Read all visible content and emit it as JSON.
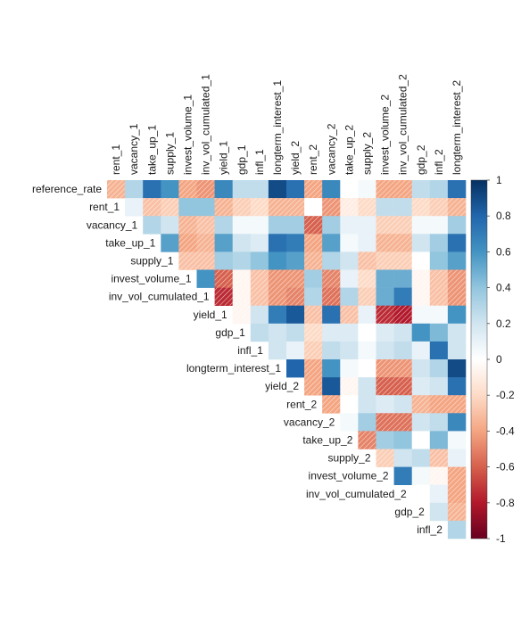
{
  "chart_data": {
    "type": "heatmap",
    "subtype": "upper-triangular correlation matrix",
    "row_labels": [
      "reference_rate",
      "rent_1",
      "vacancy_1",
      "take_up_1",
      "supply_1",
      "invest_volume_1",
      "inv_vol_cumulated_1",
      "yield_1",
      "gdp_1",
      "infl_1",
      "longterm_interest_1",
      "yield_2",
      "rent_2",
      "vacancy_2",
      "take_up_2",
      "supply_2",
      "invest_volume_2",
      "inv_vol_cumulated_2",
      "gdp_2",
      "infl_2"
    ],
    "col_labels": [
      "rent_1",
      "vacancy_1",
      "take_up_1",
      "supply_1",
      "invest_volume_1",
      "inv_vol_cumulated_1",
      "yield_1",
      "gdp_1",
      "infl_1",
      "longterm_interest_1",
      "yield_2",
      "rent_2",
      "vacancy_2",
      "take_up_2",
      "supply_2",
      "invest_volume_2",
      "inv_vol_cumulated_2",
      "gdp_2",
      "infl_2",
      "longterm_interest_2"
    ],
    "values": [
      [
        -0.35,
        0.3,
        0.75,
        0.6,
        -0.4,
        -0.45,
        0.65,
        0.25,
        0.25,
        0.9,
        0.75,
        -0.4,
        0.65,
        0.0,
        0.05,
        -0.4,
        -0.4,
        0.25,
        0.3,
        0.75
      ],
      [
        null,
        0.1,
        -0.3,
        -0.25,
        0.4,
        0.4,
        -0.35,
        -0.25,
        -0.2,
        -0.35,
        -0.35,
        0.0,
        -0.45,
        -0.1,
        -0.2,
        0.25,
        0.25,
        -0.2,
        -0.25,
        -0.35
      ],
      [
        null,
        null,
        0.3,
        0.2,
        -0.35,
        -0.3,
        0.3,
        0.05,
        0.05,
        0.35,
        0.35,
        -0.6,
        0.35,
        0.1,
        0.1,
        -0.25,
        -0.25,
        0.05,
        0.05,
        0.35
      ],
      [
        null,
        null,
        null,
        0.55,
        -0.4,
        -0.35,
        0.55,
        0.2,
        0.15,
        0.75,
        0.7,
        -0.4,
        0.55,
        0.05,
        0.1,
        -0.35,
        -0.35,
        0.2,
        0.35,
        0.75
      ],
      [
        null,
        null,
        null,
        null,
        -0.3,
        -0.3,
        0.35,
        0.3,
        0.4,
        0.6,
        0.55,
        -0.35,
        0.3,
        0.2,
        -0.3,
        -0.25,
        -0.25,
        0.0,
        0.4,
        0.55
      ],
      [
        null,
        null,
        null,
        null,
        null,
        0.6,
        -0.6,
        -0.05,
        -0.3,
        -0.45,
        -0.45,
        0.35,
        -0.5,
        0.1,
        -0.2,
        0.5,
        0.5,
        -0.05,
        -0.3,
        -0.45
      ],
      [
        null,
        null,
        null,
        null,
        null,
        null,
        -0.75,
        -0.05,
        -0.3,
        -0.45,
        -0.5,
        0.3,
        -0.55,
        0.3,
        -0.25,
        0.5,
        0.7,
        -0.05,
        -0.3,
        -0.45
      ],
      [
        null,
        null,
        null,
        null,
        null,
        null,
        null,
        -0.05,
        0.2,
        0.7,
        0.85,
        -0.3,
        0.75,
        -0.3,
        0.1,
        -0.75,
        -0.8,
        0.05,
        0.05,
        0.6
      ],
      [
        null,
        null,
        null,
        null,
        null,
        null,
        null,
        null,
        0.25,
        0.2,
        0.25,
        -0.2,
        0.15,
        0.15,
        0.0,
        0.15,
        0.2,
        0.6,
        0.45,
        0.2
      ],
      [
        null,
        null,
        null,
        null,
        null,
        null,
        null,
        null,
        null,
        0.2,
        0.1,
        -0.25,
        0.25,
        0.2,
        0.05,
        0.2,
        0.25,
        0.1,
        0.75,
        0.2
      ],
      [
        null,
        null,
        null,
        null,
        null,
        null,
        null,
        null,
        null,
        null,
        0.8,
        -0.4,
        0.6,
        0.05,
        0.0,
        -0.45,
        -0.45,
        0.2,
        0.3,
        0.9
      ],
      [
        null,
        null,
        null,
        null,
        null,
        null,
        null,
        null,
        null,
        null,
        null,
        -0.4,
        0.85,
        -0.05,
        0.2,
        -0.6,
        -0.6,
        0.15,
        0.2,
        0.75
      ],
      [
        null,
        null,
        null,
        null,
        null,
        null,
        null,
        null,
        null,
        null,
        null,
        null,
        -0.4,
        0.0,
        0.2,
        0.15,
        0.2,
        -0.35,
        -0.4,
        -0.4
      ],
      [
        null,
        null,
        null,
        null,
        null,
        null,
        null,
        null,
        null,
        null,
        null,
        null,
        null,
        0.05,
        0.35,
        -0.55,
        -0.55,
        0.2,
        0.25,
        0.65
      ],
      [
        null,
        null,
        null,
        null,
        null,
        null,
        null,
        null,
        null,
        null,
        null,
        null,
        null,
        null,
        -0.5,
        0.35,
        0.4,
        0.0,
        0.45,
        0.05
      ],
      [
        null,
        null,
        null,
        null,
        null,
        null,
        null,
        null,
        null,
        null,
        null,
        null,
        null,
        null,
        null,
        -0.25,
        0.2,
        0.25,
        -0.3,
        0.1
      ],
      [
        null,
        null,
        null,
        null,
        null,
        null,
        null,
        null,
        null,
        null,
        null,
        null,
        null,
        null,
        null,
        null,
        0.7,
        0.05,
        -0.05,
        -0.4
      ],
      [
        null,
        null,
        null,
        null,
        null,
        null,
        null,
        null,
        null,
        null,
        null,
        null,
        null,
        null,
        null,
        null,
        null,
        0.0,
        0.1,
        -0.4
      ],
      [
        null,
        null,
        null,
        null,
        null,
        null,
        null,
        null,
        null,
        null,
        null,
        null,
        null,
        null,
        null,
        null,
        null,
        null,
        0.2,
        -0.35
      ],
      [
        null,
        null,
        null,
        null,
        null,
        null,
        null,
        null,
        null,
        null,
        null,
        null,
        null,
        null,
        null,
        null,
        null,
        null,
        null,
        0.3
      ]
    ],
    "negative_hatched": true,
    "color_scale": {
      "min": -1,
      "max": 1,
      "low_color": "#67001f",
      "mid_color": "#ffffff",
      "high_color": "#053061"
    },
    "legend": {
      "position": "right",
      "ticks": [
        "1",
        "0.8",
        "0.6",
        "0.4",
        "0.2",
        "0",
        "-0.2",
        "-0.4",
        "-0.6",
        "-0.8",
        "-1"
      ]
    },
    "title": "",
    "xlabel": "",
    "ylabel": ""
  }
}
